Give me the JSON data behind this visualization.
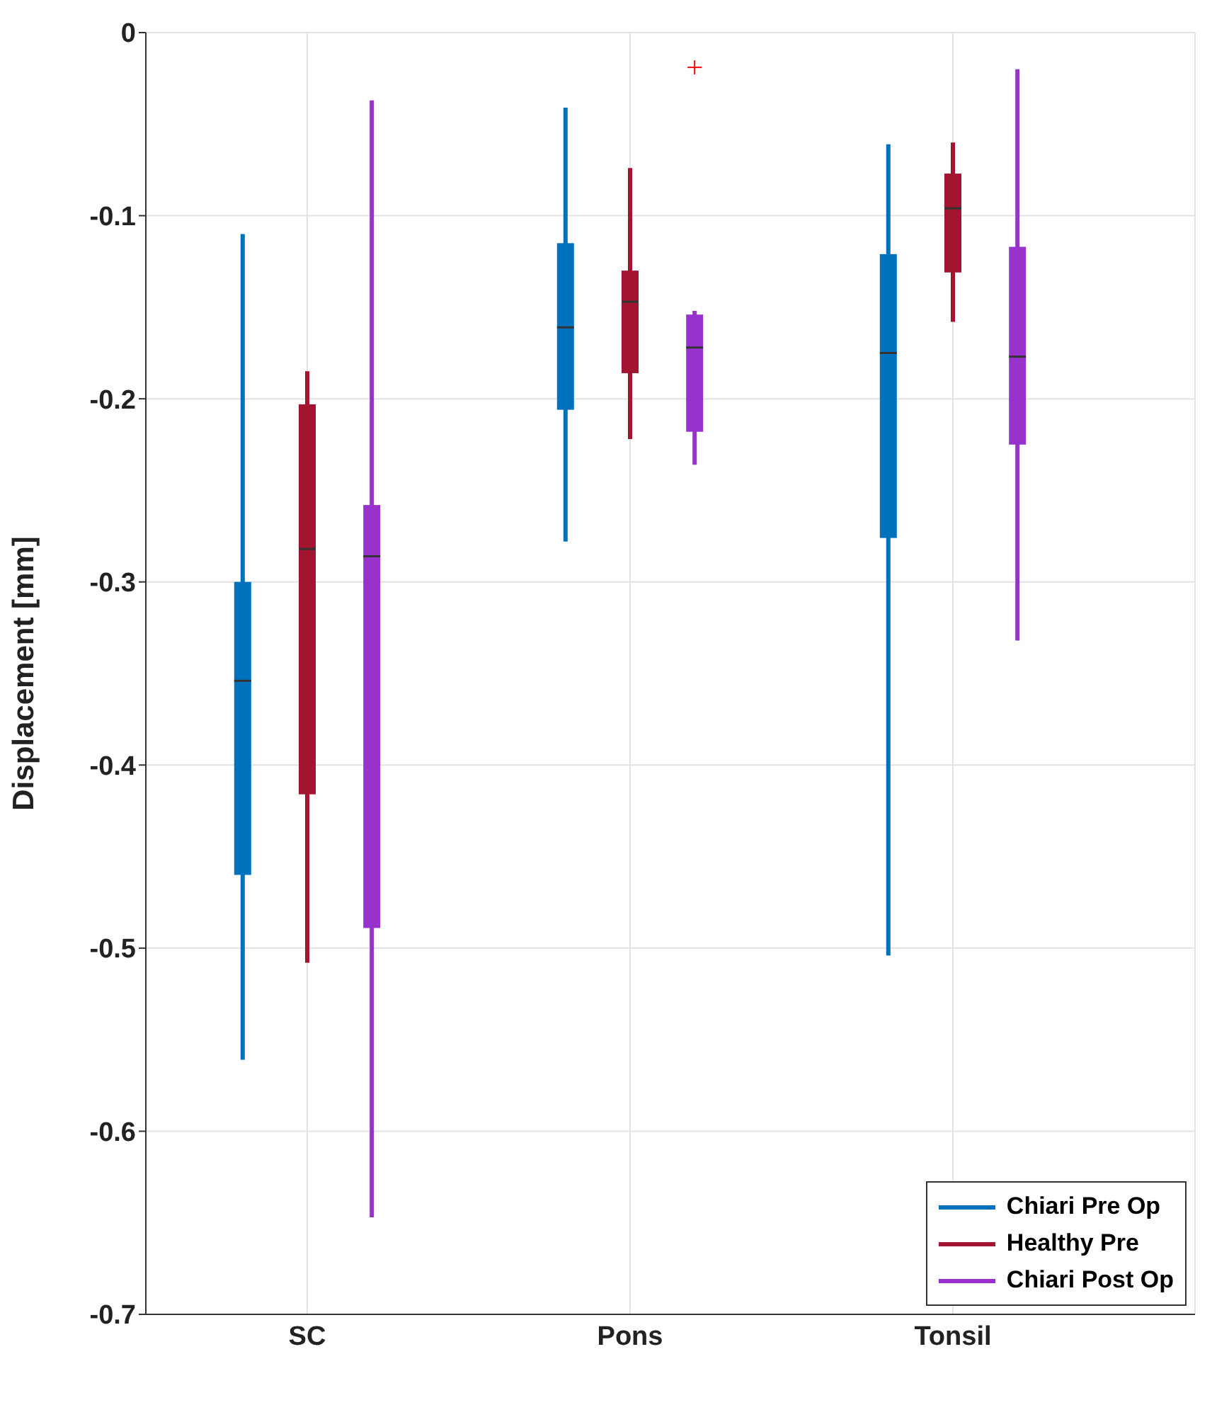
{
  "chart_data": {
    "type": "box",
    "ylabel": "Displacement [mm]",
    "categories": [
      "SC",
      "Pons",
      "Tonsil"
    ],
    "ylim": [
      -0.7,
      0
    ],
    "yticks": [
      -0.7,
      -0.6,
      -0.5,
      -0.4,
      -0.3,
      -0.2,
      -0.1,
      0
    ],
    "grid": true,
    "legend": "bottom right",
    "series": [
      {
        "name": "Chiari Pre Op",
        "color": "#0072bd",
        "boxes": [
          {
            "low": -0.561,
            "q1": -0.46,
            "median": -0.354,
            "q3": -0.3,
            "high": -0.11
          },
          {
            "low": -0.278,
            "q1": -0.206,
            "median": -0.161,
            "q3": -0.115,
            "high": -0.041
          },
          {
            "low": -0.504,
            "q1": -0.276,
            "median": -0.175,
            "q3": -0.121,
            "high": -0.061
          }
        ]
      },
      {
        "name": "Healthy Pre",
        "color": "#a2142f",
        "boxes": [
          {
            "low": -0.508,
            "q1": -0.416,
            "median": -0.282,
            "q3": -0.203,
            "high": -0.185
          },
          {
            "low": -0.222,
            "q1": -0.186,
            "median": -0.147,
            "q3": -0.13,
            "high": -0.074
          },
          {
            "low": -0.158,
            "q1": -0.131,
            "median": -0.096,
            "q3": -0.077,
            "high": -0.06
          }
        ]
      },
      {
        "name": "Chiari Post Op",
        "color": "#9932cc",
        "boxes": [
          {
            "low": -0.647,
            "q1": -0.489,
            "median": -0.286,
            "q3": -0.258,
            "high": -0.037
          },
          {
            "low": -0.236,
            "q1": -0.218,
            "median": -0.172,
            "q3": -0.154,
            "high": -0.152,
            "outliers": [
              -0.019
            ]
          },
          {
            "low": -0.332,
            "q1": -0.225,
            "median": -0.177,
            "q3": -0.117,
            "high": -0.02
          }
        ]
      }
    ]
  }
}
